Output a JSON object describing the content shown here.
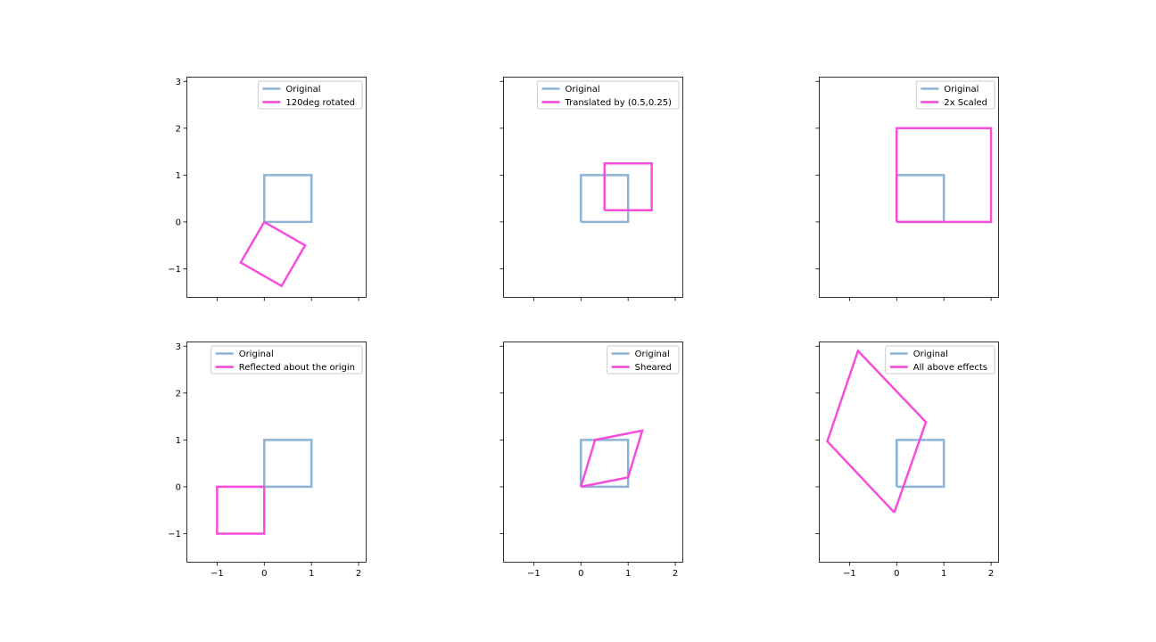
{
  "colors": {
    "original": "#8db4d6",
    "transformed": "#f545d8",
    "axes": "#000000",
    "legend_border": "#cccccc"
  },
  "chart_data": [
    {
      "type": "line",
      "title": "",
      "xlabel": "",
      "ylabel": "",
      "xlim": [
        -1.65,
        2.15
      ],
      "ylim": [
        -1.6,
        3.1
      ],
      "xticks": [
        -1,
        0,
        1,
        2
      ],
      "xtick_labels": [
        "",
        "",
        "",
        ""
      ],
      "yticks": [
        -1,
        0,
        1,
        2,
        3
      ],
      "ytick_labels": [
        "−1",
        "0",
        "1",
        "2",
        "3"
      ],
      "legend_position": "top-right",
      "series": [
        {
          "name": "Original",
          "color": "#8db4d6",
          "x": [
            0,
            1,
            1,
            0,
            0
          ],
          "y": [
            0,
            0,
            1,
            1,
            0
          ]
        },
        {
          "name": "120deg rotated",
          "color": "#f545d8",
          "x": [
            0,
            -0.5,
            0.366,
            0.866,
            0
          ],
          "y": [
            0,
            -0.866,
            -1.366,
            -0.5,
            0
          ]
        }
      ]
    },
    {
      "type": "line",
      "title": "",
      "xlabel": "",
      "ylabel": "",
      "xlim": [
        -1.65,
        2.15
      ],
      "ylim": [
        -1.6,
        3.1
      ],
      "xticks": [
        -1,
        0,
        1,
        2
      ],
      "xtick_labels": [
        "",
        "",
        "",
        ""
      ],
      "yticks": [
        -1,
        0,
        1,
        2,
        3
      ],
      "ytick_labels": [
        "",
        "",
        "",
        "",
        ""
      ],
      "legend_position": "top-right",
      "series": [
        {
          "name": "Original",
          "color": "#8db4d6",
          "x": [
            0,
            1,
            1,
            0,
            0
          ],
          "y": [
            0,
            0,
            1,
            1,
            0
          ]
        },
        {
          "name": "Translated by (0.5,0.25)",
          "color": "#f545d8",
          "x": [
            0.5,
            1.5,
            1.5,
            0.5,
            0.5
          ],
          "y": [
            0.25,
            0.25,
            1.25,
            1.25,
            0.25
          ]
        }
      ]
    },
    {
      "type": "line",
      "title": "",
      "xlabel": "",
      "ylabel": "",
      "xlim": [
        -1.65,
        2.15
      ],
      "ylim": [
        -1.6,
        3.1
      ],
      "xticks": [
        -1,
        0,
        1,
        2
      ],
      "xtick_labels": [
        "",
        "",
        "",
        ""
      ],
      "yticks": [
        -1,
        0,
        1,
        2,
        3
      ],
      "ytick_labels": [
        "",
        "",
        "",
        "",
        ""
      ],
      "legend_position": "top-right",
      "series": [
        {
          "name": "Original",
          "color": "#8db4d6",
          "x": [
            0,
            1,
            1,
            0,
            0
          ],
          "y": [
            0,
            0,
            1,
            1,
            0
          ]
        },
        {
          "name": "2x Scaled",
          "color": "#f545d8",
          "x": [
            0,
            2,
            2,
            0,
            0
          ],
          "y": [
            0,
            0,
            2,
            2,
            0
          ]
        }
      ]
    },
    {
      "type": "line",
      "title": "",
      "xlabel": "",
      "ylabel": "",
      "xlim": [
        -1.65,
        2.15
      ],
      "ylim": [
        -1.6,
        3.1
      ],
      "xticks": [
        -1,
        0,
        1,
        2
      ],
      "xtick_labels": [
        "−1",
        "0",
        "1",
        "2"
      ],
      "yticks": [
        -1,
        0,
        1,
        2,
        3
      ],
      "ytick_labels": [
        "−1",
        "0",
        "1",
        "2",
        "3"
      ],
      "legend_position": "top-right",
      "series": [
        {
          "name": "Original",
          "color": "#8db4d6",
          "x": [
            0,
            1,
            1,
            0,
            0
          ],
          "y": [
            0,
            0,
            1,
            1,
            0
          ]
        },
        {
          "name": "Reflected about the origin",
          "color": "#f545d8",
          "x": [
            0,
            -1,
            -1,
            0,
            0
          ],
          "y": [
            0,
            0,
            -1,
            -1,
            0
          ]
        }
      ]
    },
    {
      "type": "line",
      "title": "",
      "xlabel": "",
      "ylabel": "",
      "xlim": [
        -1.65,
        2.15
      ],
      "ylim": [
        -1.6,
        3.1
      ],
      "xticks": [
        -1,
        0,
        1,
        2
      ],
      "xtick_labels": [
        "−1",
        "0",
        "1",
        "2"
      ],
      "yticks": [
        -1,
        0,
        1,
        2,
        3
      ],
      "ytick_labels": [
        "",
        "",
        "",
        "",
        ""
      ],
      "legend_position": "top-right",
      "series": [
        {
          "name": "Original",
          "color": "#8db4d6",
          "x": [
            0,
            1,
            1,
            0,
            0
          ],
          "y": [
            0,
            0,
            1,
            1,
            0
          ]
        },
        {
          "name": "Sheared",
          "color": "#f545d8",
          "x": [
            0,
            1,
            1.3,
            0.3,
            0
          ],
          "y": [
            0,
            0.2,
            1.2,
            1,
            0
          ]
        }
      ]
    },
    {
      "type": "line",
      "title": "",
      "xlabel": "",
      "ylabel": "",
      "xlim": [
        -1.65,
        2.15
      ],
      "ylim": [
        -1.6,
        3.1
      ],
      "xticks": [
        -1,
        0,
        1,
        2
      ],
      "xtick_labels": [
        "−1",
        "0",
        "1",
        "2"
      ],
      "yticks": [
        -1,
        0,
        1,
        2,
        3
      ],
      "ytick_labels": [
        "",
        "",
        "",
        "",
        ""
      ],
      "legend_position": "top-right",
      "series": [
        {
          "name": "Original",
          "color": "#8db4d6",
          "x": [
            0,
            1,
            1,
            0,
            0
          ],
          "y": [
            0,
            0,
            1,
            1,
            0
          ]
        },
        {
          "name": "All above effects",
          "color": "#f545d8",
          "x": [
            -0.05,
            0.62,
            -0.82,
            -1.47,
            -0.05
          ],
          "y": [
            -0.55,
            1.38,
            2.9,
            0.97,
            -0.55
          ]
        }
      ]
    }
  ]
}
